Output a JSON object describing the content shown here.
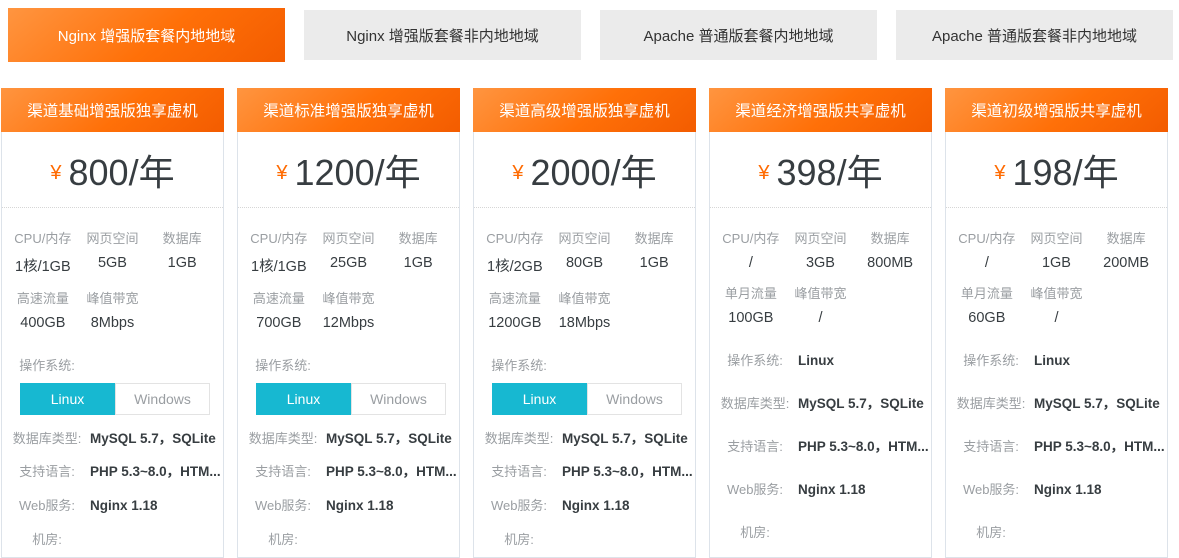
{
  "colors": {
    "accent_orange": "#ff6a00",
    "toggle_active_cyan": "#17b8d1",
    "tab_inactive_bg": "#ebebeb"
  },
  "tabs": [
    {
      "label": "Nginx 增强版套餐内地地域",
      "active": true
    },
    {
      "label": "Nginx 增强版套餐非内地地域",
      "active": false
    },
    {
      "label": "Apache 普通版套餐内地地域",
      "active": false
    },
    {
      "label": "Apache 普通版套餐非内地地域",
      "active": false
    }
  ],
  "cards": [
    {
      "title": "渠道基础增强版独享虚机",
      "currency": "¥",
      "amount": "800",
      "unit": "/年",
      "specs": [
        {
          "label": "CPU/内存",
          "value": "1核/1GB"
        },
        {
          "label": "网页空间",
          "value": "5GB"
        },
        {
          "label": "数据库",
          "value": "1GB"
        },
        {
          "label": "高速流量",
          "value": "400GB"
        },
        {
          "label": "峰值带宽",
          "value": "8Mbps"
        }
      ],
      "os": {
        "label": "操作系统:",
        "toggle": [
          {
            "label": "Linux",
            "active": true
          },
          {
            "label": "Windows",
            "active": false
          }
        ]
      },
      "details": [
        {
          "label": "数据库类型:",
          "value": "MySQL 5.7，SQLite"
        },
        {
          "label": "支持语言:",
          "value": "PHP 5.3~8.0，HTM..."
        },
        {
          "label": "Web服务:",
          "value": "Nginx 1.18"
        },
        {
          "label": "机房:",
          "value": ""
        }
      ]
    },
    {
      "title": "渠道标准增强版独享虚机",
      "currency": "¥",
      "amount": "1200",
      "unit": "/年",
      "specs": [
        {
          "label": "CPU/内存",
          "value": "1核/1GB"
        },
        {
          "label": "网页空间",
          "value": "25GB"
        },
        {
          "label": "数据库",
          "value": "1GB"
        },
        {
          "label": "高速流量",
          "value": "700GB"
        },
        {
          "label": "峰值带宽",
          "value": "12Mbps"
        }
      ],
      "os": {
        "label": "操作系统:",
        "toggle": [
          {
            "label": "Linux",
            "active": true
          },
          {
            "label": "Windows",
            "active": false
          }
        ]
      },
      "details": [
        {
          "label": "数据库类型:",
          "value": "MySQL 5.7，SQLite"
        },
        {
          "label": "支持语言:",
          "value": "PHP 5.3~8.0，HTM..."
        },
        {
          "label": "Web服务:",
          "value": "Nginx 1.18"
        },
        {
          "label": "机房:",
          "value": ""
        }
      ]
    },
    {
      "title": "渠道高级增强版独享虚机",
      "currency": "¥",
      "amount": "2000",
      "unit": "/年",
      "specs": [
        {
          "label": "CPU/内存",
          "value": "1核/2GB"
        },
        {
          "label": "网页空间",
          "value": "80GB"
        },
        {
          "label": "数据库",
          "value": "1GB"
        },
        {
          "label": "高速流量",
          "value": "1200GB"
        },
        {
          "label": "峰值带宽",
          "value": "18Mbps"
        }
      ],
      "os": {
        "label": "操作系统:",
        "toggle": [
          {
            "label": "Linux",
            "active": true
          },
          {
            "label": "Windows",
            "active": false
          }
        ]
      },
      "details": [
        {
          "label": "数据库类型:",
          "value": "MySQL 5.7，SQLite"
        },
        {
          "label": "支持语言:",
          "value": "PHP 5.3~8.0，HTM..."
        },
        {
          "label": "Web服务:",
          "value": "Nginx 1.18"
        },
        {
          "label": "机房:",
          "value": ""
        }
      ]
    },
    {
      "title": "渠道经济增强版共享虚机",
      "currency": "¥",
      "amount": "398",
      "unit": "/年",
      "specs": [
        {
          "label": "CPU/内存",
          "value": "/"
        },
        {
          "label": "网页空间",
          "value": "3GB"
        },
        {
          "label": "数据库",
          "value": "800MB"
        },
        {
          "label": "单月流量",
          "value": "100GB"
        },
        {
          "label": "峰值带宽",
          "value": "/"
        }
      ],
      "os": {
        "label": "操作系统:",
        "value": "Linux"
      },
      "details": [
        {
          "label": "数据库类型:",
          "value": "MySQL 5.7，SQLite"
        },
        {
          "label": "支持语言:",
          "value": "PHP 5.3~8.0，HTM..."
        },
        {
          "label": "Web服务:",
          "value": "Nginx 1.18"
        },
        {
          "label": "机房:",
          "value": ""
        }
      ]
    },
    {
      "title": "渠道初级增强版共享虚机",
      "currency": "¥",
      "amount": "198",
      "unit": "/年",
      "specs": [
        {
          "label": "CPU/内存",
          "value": "/"
        },
        {
          "label": "网页空间",
          "value": "1GB"
        },
        {
          "label": "数据库",
          "value": "200MB"
        },
        {
          "label": "单月流量",
          "value": "60GB"
        },
        {
          "label": "峰值带宽",
          "value": "/"
        }
      ],
      "os": {
        "label": "操作系统:",
        "value": "Linux"
      },
      "details": [
        {
          "label": "数据库类型:",
          "value": "MySQL 5.7，SQLite"
        },
        {
          "label": "支持语言:",
          "value": "PHP 5.3~8.0，HTM..."
        },
        {
          "label": "Web服务:",
          "value": "Nginx 1.18"
        },
        {
          "label": "机房:",
          "value": ""
        }
      ]
    }
  ]
}
